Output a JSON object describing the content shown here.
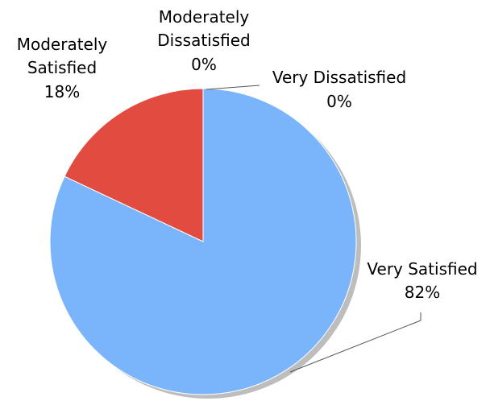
{
  "chart_data": {
    "type": "pie",
    "title": "",
    "slices": [
      {
        "label": "Very Satisfied",
        "value": 82,
        "pct_text": "82%",
        "color": "#7ab4fb"
      },
      {
        "label": "Moderately Satisfied",
        "value": 18,
        "pct_text": "18%",
        "color": "#e24b40"
      },
      {
        "label": "Moderately Dissatisfied",
        "value": 0,
        "pct_text": "0%",
        "color": "#f0c040"
      },
      {
        "label": "Very Dissatisfied",
        "value": 0,
        "pct_text": "0%",
        "color": "#60c060"
      }
    ],
    "label_lines": {
      "very_satisfied": [
        "Very Satisfied",
        "82%"
      ],
      "moderately_satisfied": [
        "Moderately",
        "Satisfied",
        "18%"
      ],
      "moderately_dissatisfied": [
        "Moderately",
        "Dissatisfied",
        "0%"
      ],
      "very_dissatisfied": [
        "Very Dissatisfied",
        "0%"
      ]
    },
    "shadow_color": "#bdbdbd",
    "slice_border_color": "#ffffff",
    "start_angle": "12 o'clock",
    "direction": "clockwise"
  }
}
